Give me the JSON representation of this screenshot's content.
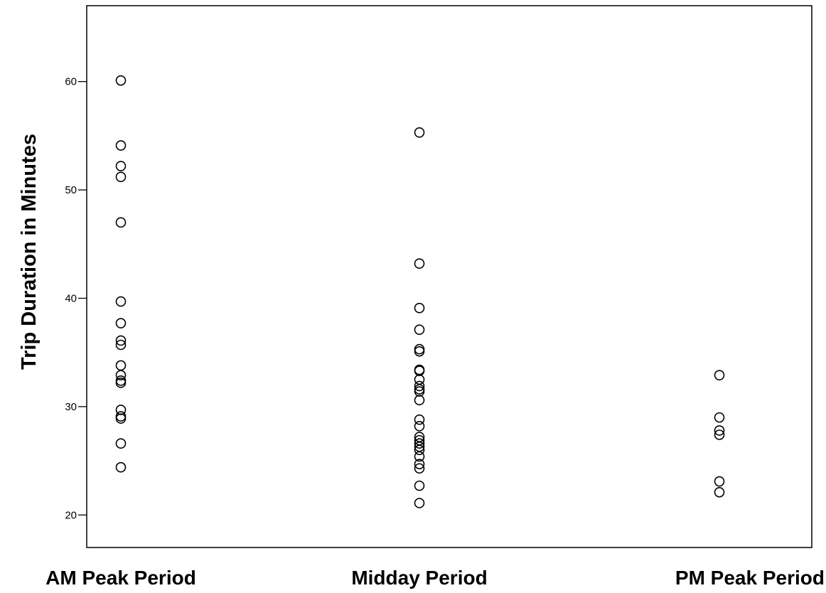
{
  "chart_data": {
    "type": "scatter",
    "title": "",
    "xlabel": "",
    "ylabel": "Trip Duration in Minutes",
    "categories": [
      "AM Peak Period",
      "Midday Period",
      "PM Peak Period"
    ],
    "ylim": [
      17,
      67
    ],
    "yticks": [
      20,
      30,
      40,
      50,
      60
    ],
    "grid": false,
    "marker": "open-circle",
    "series": [
      {
        "category": "AM Peak Period",
        "values": [
          60.1,
          54.1,
          52.2,
          51.2,
          47.0,
          39.7,
          37.7,
          36.1,
          35.7,
          33.8,
          32.9,
          32.4,
          32.2,
          29.7,
          29.1,
          28.9,
          26.6,
          24.4
        ]
      },
      {
        "category": "Midday Period",
        "values": [
          55.3,
          43.2,
          39.1,
          37.1,
          35.3,
          35.1,
          33.4,
          33.3,
          32.5,
          31.9,
          31.6,
          31.4,
          30.6,
          28.8,
          28.2,
          27.2,
          26.9,
          26.6,
          26.3,
          26.0,
          25.4,
          24.7,
          24.3,
          22.7,
          21.1
        ]
      },
      {
        "category": "PM Peak Period",
        "values": [
          32.9,
          29.0,
          27.8,
          27.4,
          23.1,
          22.1
        ]
      }
    ]
  }
}
